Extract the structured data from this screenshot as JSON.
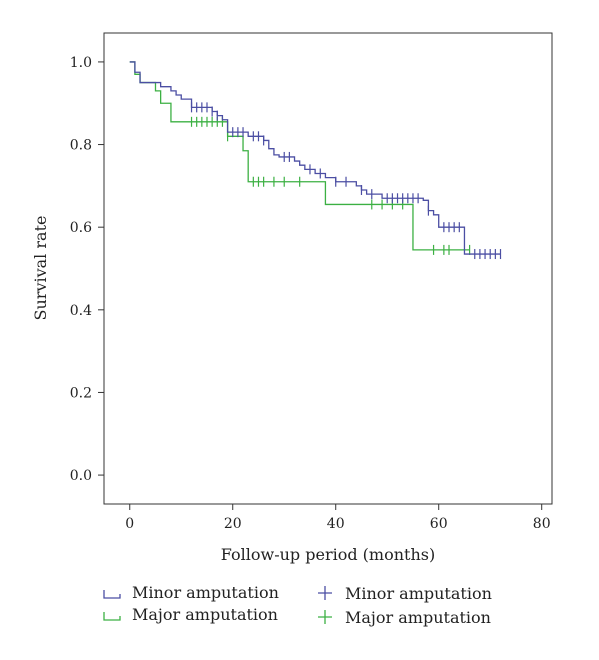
{
  "chart_data": {
    "type": "line",
    "subtype": "kaplan-meier",
    "title": "",
    "xlabel": "Follow-up period (months)",
    "ylabel": "Survival rate",
    "xlim": [
      -5,
      82
    ],
    "ylim": [
      -0.07,
      1.07
    ],
    "xticks": [
      0,
      20,
      40,
      60,
      80
    ],
    "yticks": [
      0.0,
      0.2,
      0.4,
      0.6,
      0.8,
      1.0
    ],
    "xtick_labels": [
      "0",
      "20",
      "40",
      "60",
      "80"
    ],
    "ytick_labels": [
      "0.0",
      "0.2",
      "0.4",
      "0.6",
      "0.8",
      "1.0"
    ],
    "grid": false,
    "legend_position": "bottom",
    "series": [
      {
        "name": "Minor amputation",
        "color": "#4b4ea3",
        "steps": [
          [
            0,
            1.0
          ],
          [
            1,
            0.975
          ],
          [
            2,
            0.95
          ],
          [
            6,
            0.94
          ],
          [
            8,
            0.93
          ],
          [
            9,
            0.92
          ],
          [
            10,
            0.91
          ],
          [
            12,
            0.89
          ],
          [
            16,
            0.88
          ],
          [
            17,
            0.87
          ],
          [
            18,
            0.86
          ],
          [
            19,
            0.83
          ],
          [
            23,
            0.82
          ],
          [
            26,
            0.81
          ],
          [
            27,
            0.79
          ],
          [
            28,
            0.775
          ],
          [
            29,
            0.77
          ],
          [
            32,
            0.76
          ],
          [
            33,
            0.75
          ],
          [
            34,
            0.74
          ],
          [
            36,
            0.73
          ],
          [
            38,
            0.72
          ],
          [
            40,
            0.71
          ],
          [
            44,
            0.7
          ],
          [
            45,
            0.69
          ],
          [
            46,
            0.68
          ],
          [
            49,
            0.67
          ],
          [
            57,
            0.665
          ],
          [
            58,
            0.64
          ],
          [
            59,
            0.63
          ],
          [
            60,
            0.6
          ],
          [
            65,
            0.535
          ],
          [
            72,
            0.535
          ]
        ],
        "censored": [
          [
            12,
            0.89
          ],
          [
            13,
            0.89
          ],
          [
            14,
            0.89
          ],
          [
            15,
            0.89
          ],
          [
            16,
            0.88
          ],
          [
            17,
            0.87
          ],
          [
            20,
            0.83
          ],
          [
            21,
            0.83
          ],
          [
            22,
            0.83
          ],
          [
            24,
            0.82
          ],
          [
            25,
            0.82
          ],
          [
            26,
            0.81
          ],
          [
            30,
            0.77
          ],
          [
            31,
            0.77
          ],
          [
            35,
            0.74
          ],
          [
            37,
            0.73
          ],
          [
            40,
            0.71
          ],
          [
            42,
            0.71
          ],
          [
            45,
            0.69
          ],
          [
            47,
            0.68
          ],
          [
            50,
            0.67
          ],
          [
            51,
            0.67
          ],
          [
            52,
            0.67
          ],
          [
            53,
            0.67
          ],
          [
            54,
            0.67
          ],
          [
            55,
            0.67
          ],
          [
            56,
            0.67
          ],
          [
            58,
            0.64
          ],
          [
            61,
            0.6
          ],
          [
            62,
            0.6
          ],
          [
            63,
            0.6
          ],
          [
            64,
            0.6
          ],
          [
            67,
            0.535
          ],
          [
            68,
            0.535
          ],
          [
            69,
            0.535
          ],
          [
            70,
            0.535
          ],
          [
            71,
            0.535
          ],
          [
            72,
            0.535
          ]
        ]
      },
      {
        "name": "Major amputation",
        "color": "#3cb043",
        "steps": [
          [
            0,
            1.0
          ],
          [
            1,
            0.97
          ],
          [
            2,
            0.95
          ],
          [
            5,
            0.93
          ],
          [
            6,
            0.9
          ],
          [
            8,
            0.855
          ],
          [
            19,
            0.82
          ],
          [
            22,
            0.785
          ],
          [
            23,
            0.71
          ],
          [
            38,
            0.655
          ],
          [
            55,
            0.545
          ],
          [
            66,
            0.545
          ]
        ],
        "censored": [
          [
            12,
            0.855
          ],
          [
            13,
            0.855
          ],
          [
            14,
            0.855
          ],
          [
            15,
            0.855
          ],
          [
            16,
            0.855
          ],
          [
            17,
            0.855
          ],
          [
            18,
            0.855
          ],
          [
            19,
            0.82
          ],
          [
            24,
            0.71
          ],
          [
            25,
            0.71
          ],
          [
            26,
            0.71
          ],
          [
            28,
            0.71
          ],
          [
            30,
            0.71
          ],
          [
            33,
            0.71
          ],
          [
            47,
            0.655
          ],
          [
            49,
            0.655
          ],
          [
            51,
            0.655
          ],
          [
            53,
            0.655
          ],
          [
            59,
            0.545
          ],
          [
            61,
            0.545
          ],
          [
            62,
            0.545
          ],
          [
            66,
            0.545
          ]
        ]
      }
    ],
    "legend": {
      "step_entries": [
        "Minor amputation",
        "Major amputation"
      ],
      "censor_entries": [
        "Minor amputation",
        "Major amputation"
      ]
    }
  }
}
